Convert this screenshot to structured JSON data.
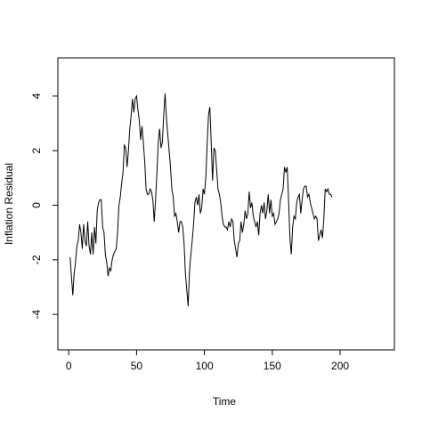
{
  "chart_data": {
    "type": "line",
    "title": "",
    "xlabel": "Time",
    "ylabel": "Inflation Residual",
    "xlim": [
      -8,
      240
    ],
    "ylim": [
      -5.3,
      5.4
    ],
    "x_ticks": [
      0,
      50,
      100,
      150,
      200
    ],
    "y_ticks": [
      -4,
      -2,
      0,
      2,
      4
    ],
    "grid": false,
    "series": [
      {
        "points": [
          [
            1,
            -1.9
          ],
          [
            2,
            -2.6
          ],
          [
            3,
            -3.3
          ],
          [
            4,
            -2.5
          ],
          [
            5,
            -2.1
          ],
          [
            6,
            -1.5
          ],
          [
            7,
            -1.3
          ],
          [
            8,
            -0.7
          ],
          [
            9,
            -1.0
          ],
          [
            10,
            -1.6
          ],
          [
            11,
            -0.7
          ],
          [
            12,
            -1.3
          ],
          [
            13,
            -1.5
          ],
          [
            14,
            -0.6
          ],
          [
            15,
            -1.5
          ],
          [
            16,
            -1.8
          ],
          [
            17,
            -1.0
          ],
          [
            18,
            -1.8
          ],
          [
            19,
            -0.8
          ],
          [
            20,
            -1.4
          ],
          [
            21,
            -0.2
          ],
          [
            22,
            0.1
          ],
          [
            23,
            0.2
          ],
          [
            24,
            0.2
          ],
          [
            25,
            -0.8
          ],
          [
            26,
            -1.0
          ],
          [
            27,
            -1.8
          ],
          [
            28,
            -2.1
          ],
          [
            29,
            -2.6
          ],
          [
            30,
            -2.3
          ],
          [
            31,
            -2.4
          ],
          [
            32,
            -2.0
          ],
          [
            33,
            -1.8
          ],
          [
            34,
            -1.7
          ],
          [
            35,
            -1.6
          ],
          [
            36,
            -1.0
          ],
          [
            37,
            0.0
          ],
          [
            38,
            0.3
          ],
          [
            39,
            0.8
          ],
          [
            40,
            1.2
          ],
          [
            41,
            2.2
          ],
          [
            42,
            2.1
          ],
          [
            43,
            1.4
          ],
          [
            44,
            2.0
          ],
          [
            45,
            2.8
          ],
          [
            46,
            3.3
          ],
          [
            47,
            3.9
          ],
          [
            48,
            3.4
          ],
          [
            49,
            3.9
          ],
          [
            50,
            4.0
          ],
          [
            51,
            3.5
          ],
          [
            52,
            3.1
          ],
          [
            53,
            2.4
          ],
          [
            54,
            2.9
          ],
          [
            55,
            2.3
          ],
          [
            56,
            1.6
          ],
          [
            57,
            0.6
          ],
          [
            58,
            0.4
          ],
          [
            59,
            0.4
          ],
          [
            60,
            0.6
          ],
          [
            61,
            0.5
          ],
          [
            62,
            0.2
          ],
          [
            63,
            -0.6
          ],
          [
            64,
            0.2
          ],
          [
            65,
            1.2
          ],
          [
            66,
            2.3
          ],
          [
            67,
            2.8
          ],
          [
            68,
            2.1
          ],
          [
            69,
            2.3
          ],
          [
            70,
            3.3
          ],
          [
            71,
            4.1
          ],
          [
            72,
            3.2
          ],
          [
            73,
            2.6
          ],
          [
            74,
            2.0
          ],
          [
            75,
            1.4
          ],
          [
            76,
            0.6
          ],
          [
            77,
            0.3
          ],
          [
            78,
            -0.4
          ],
          [
            79,
            -0.3
          ],
          [
            80,
            -0.6
          ],
          [
            81,
            -1.0
          ],
          [
            82,
            -0.6
          ],
          [
            83,
            -0.6
          ],
          [
            84,
            -0.8
          ],
          [
            85,
            -1.4
          ],
          [
            86,
            -2.5
          ],
          [
            87,
            -3.1
          ],
          [
            88,
            -3.7
          ],
          [
            89,
            -2.4
          ],
          [
            90,
            -1.8
          ],
          [
            91,
            -1.3
          ],
          [
            92,
            -0.7
          ],
          [
            93,
            0.1
          ],
          [
            94,
            0.3
          ],
          [
            95,
            0.0
          ],
          [
            96,
            0.4
          ],
          [
            97,
            -0.3
          ],
          [
            98,
            -0.1
          ],
          [
            99,
            0.6
          ],
          [
            100,
            0.4
          ],
          [
            101,
            1.0
          ],
          [
            102,
            2.2
          ],
          [
            103,
            3.3
          ],
          [
            104,
            3.6
          ],
          [
            105,
            2.3
          ],
          [
            106,
            0.9
          ],
          [
            107,
            2.1
          ],
          [
            108,
            2.0
          ],
          [
            109,
            1.3
          ],
          [
            110,
            0.6
          ],
          [
            111,
            0.4
          ],
          [
            112,
            0.1
          ],
          [
            113,
            -0.4
          ],
          [
            114,
            -0.7
          ],
          [
            115,
            -0.8
          ],
          [
            116,
            -0.8
          ],
          [
            117,
            -0.9
          ],
          [
            118,
            -0.6
          ],
          [
            119,
            -0.8
          ],
          [
            120,
            -0.5
          ],
          [
            121,
            -0.6
          ],
          [
            122,
            -1.3
          ],
          [
            123,
            -1.6
          ],
          [
            124,
            -1.9
          ],
          [
            125,
            -1.4
          ],
          [
            126,
            -1.3
          ],
          [
            127,
            -0.6
          ],
          [
            128,
            -1.0
          ],
          [
            129,
            -0.7
          ],
          [
            130,
            -0.2
          ],
          [
            131,
            -0.5
          ],
          [
            132,
            -0.3
          ],
          [
            133,
            0.5
          ],
          [
            134,
            -0.1
          ],
          [
            135,
            0.1
          ],
          [
            136,
            -0.4
          ],
          [
            137,
            -0.6
          ],
          [
            138,
            -0.8
          ],
          [
            139,
            -0.6
          ],
          [
            140,
            -1.1
          ],
          [
            141,
            -0.3
          ],
          [
            142,
            0.0
          ],
          [
            143,
            -0.3
          ],
          [
            144,
            0.1
          ],
          [
            145,
            -0.5
          ],
          [
            146,
            -0.2
          ],
          [
            147,
            0.4
          ],
          [
            148,
            -0.3
          ],
          [
            149,
            0.2
          ],
          [
            150,
            -0.4
          ],
          [
            151,
            -0.3
          ],
          [
            152,
            -0.7
          ],
          [
            153,
            -0.6
          ],
          [
            154,
            -0.5
          ],
          [
            155,
            -0.3
          ],
          [
            156,
            0.2
          ],
          [
            157,
            0.4
          ],
          [
            158,
            0.6
          ],
          [
            159,
            1.4
          ],
          [
            160,
            1.2
          ],
          [
            161,
            1.4
          ],
          [
            162,
            0.2
          ],
          [
            163,
            -1.2
          ],
          [
            164,
            -1.8
          ],
          [
            165,
            -0.8
          ],
          [
            166,
            -0.4
          ],
          [
            167,
            -0.5
          ],
          [
            168,
            0.1
          ],
          [
            169,
            0.3
          ],
          [
            170,
            0.4
          ],
          [
            171,
            -0.3
          ],
          [
            172,
            0.2
          ],
          [
            173,
            0.6
          ],
          [
            174,
            0.7
          ],
          [
            175,
            0.7
          ],
          [
            176,
            0.3
          ],
          [
            177,
            0.4
          ],
          [
            178,
            0.1
          ],
          [
            179,
            -0.1
          ],
          [
            180,
            -0.3
          ],
          [
            181,
            -0.5
          ],
          [
            182,
            -0.4
          ],
          [
            183,
            -0.5
          ],
          [
            184,
            -1.3
          ],
          [
            185,
            -1.1
          ],
          [
            186,
            -0.9
          ],
          [
            187,
            -1.2
          ],
          [
            188,
            -0.5
          ],
          [
            189,
            0.6
          ],
          [
            190,
            0.5
          ],
          [
            191,
            0.6
          ],
          [
            192,
            0.4
          ],
          [
            193,
            0.4
          ],
          [
            194,
            0.3
          ]
        ]
      }
    ]
  }
}
